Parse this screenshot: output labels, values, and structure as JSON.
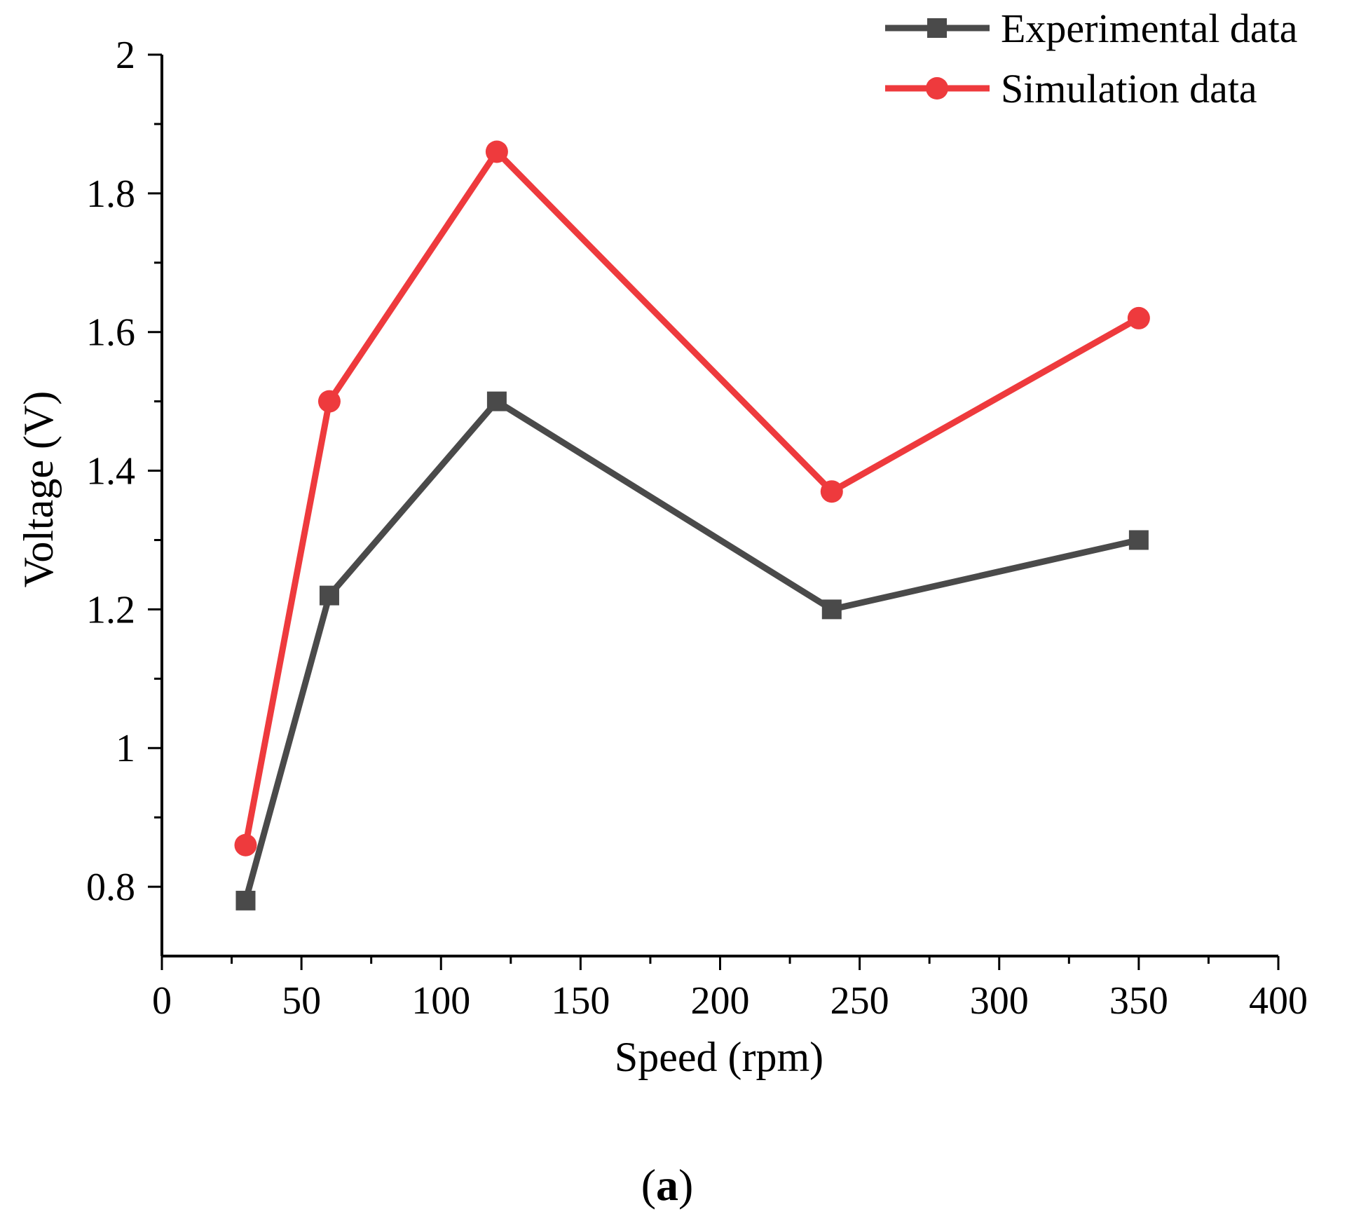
{
  "chart_data": {
    "type": "line",
    "title": "",
    "xlabel": "Speed (rpm)",
    "ylabel": "Voltage (V)",
    "xlim": [
      0,
      400
    ],
    "ylim": [
      0.7,
      2.0
    ],
    "x_ticks": [
      0,
      50,
      100,
      150,
      200,
      250,
      300,
      350,
      400
    ],
    "x_tick_labels": [
      "0",
      "50",
      "100",
      "150",
      "200",
      "250",
      "300",
      "350",
      "400"
    ],
    "y_ticks": [
      0.8,
      1.0,
      1.2,
      1.4,
      1.6,
      1.8,
      2.0
    ],
    "y_tick_labels": [
      "0.8",
      "1",
      "1.2",
      "1.4",
      "1.6",
      "1.8",
      "2"
    ],
    "x": [
      30,
      60,
      120,
      240,
      350
    ],
    "series": [
      {
        "name": "Experimental data",
        "color": "#4a4a4a",
        "marker": "square",
        "values": [
          0.78,
          1.22,
          1.5,
          1.2,
          1.3
        ]
      },
      {
        "name": "Simulation data",
        "color": "#ee3a3d",
        "marker": "circle",
        "values": [
          0.86,
          1.5,
          1.86,
          1.37,
          1.62
        ]
      }
    ],
    "legend_position": "top-right",
    "grid": false,
    "caption_letter": "a",
    "caption_open": "(",
    "caption_close": ")"
  }
}
